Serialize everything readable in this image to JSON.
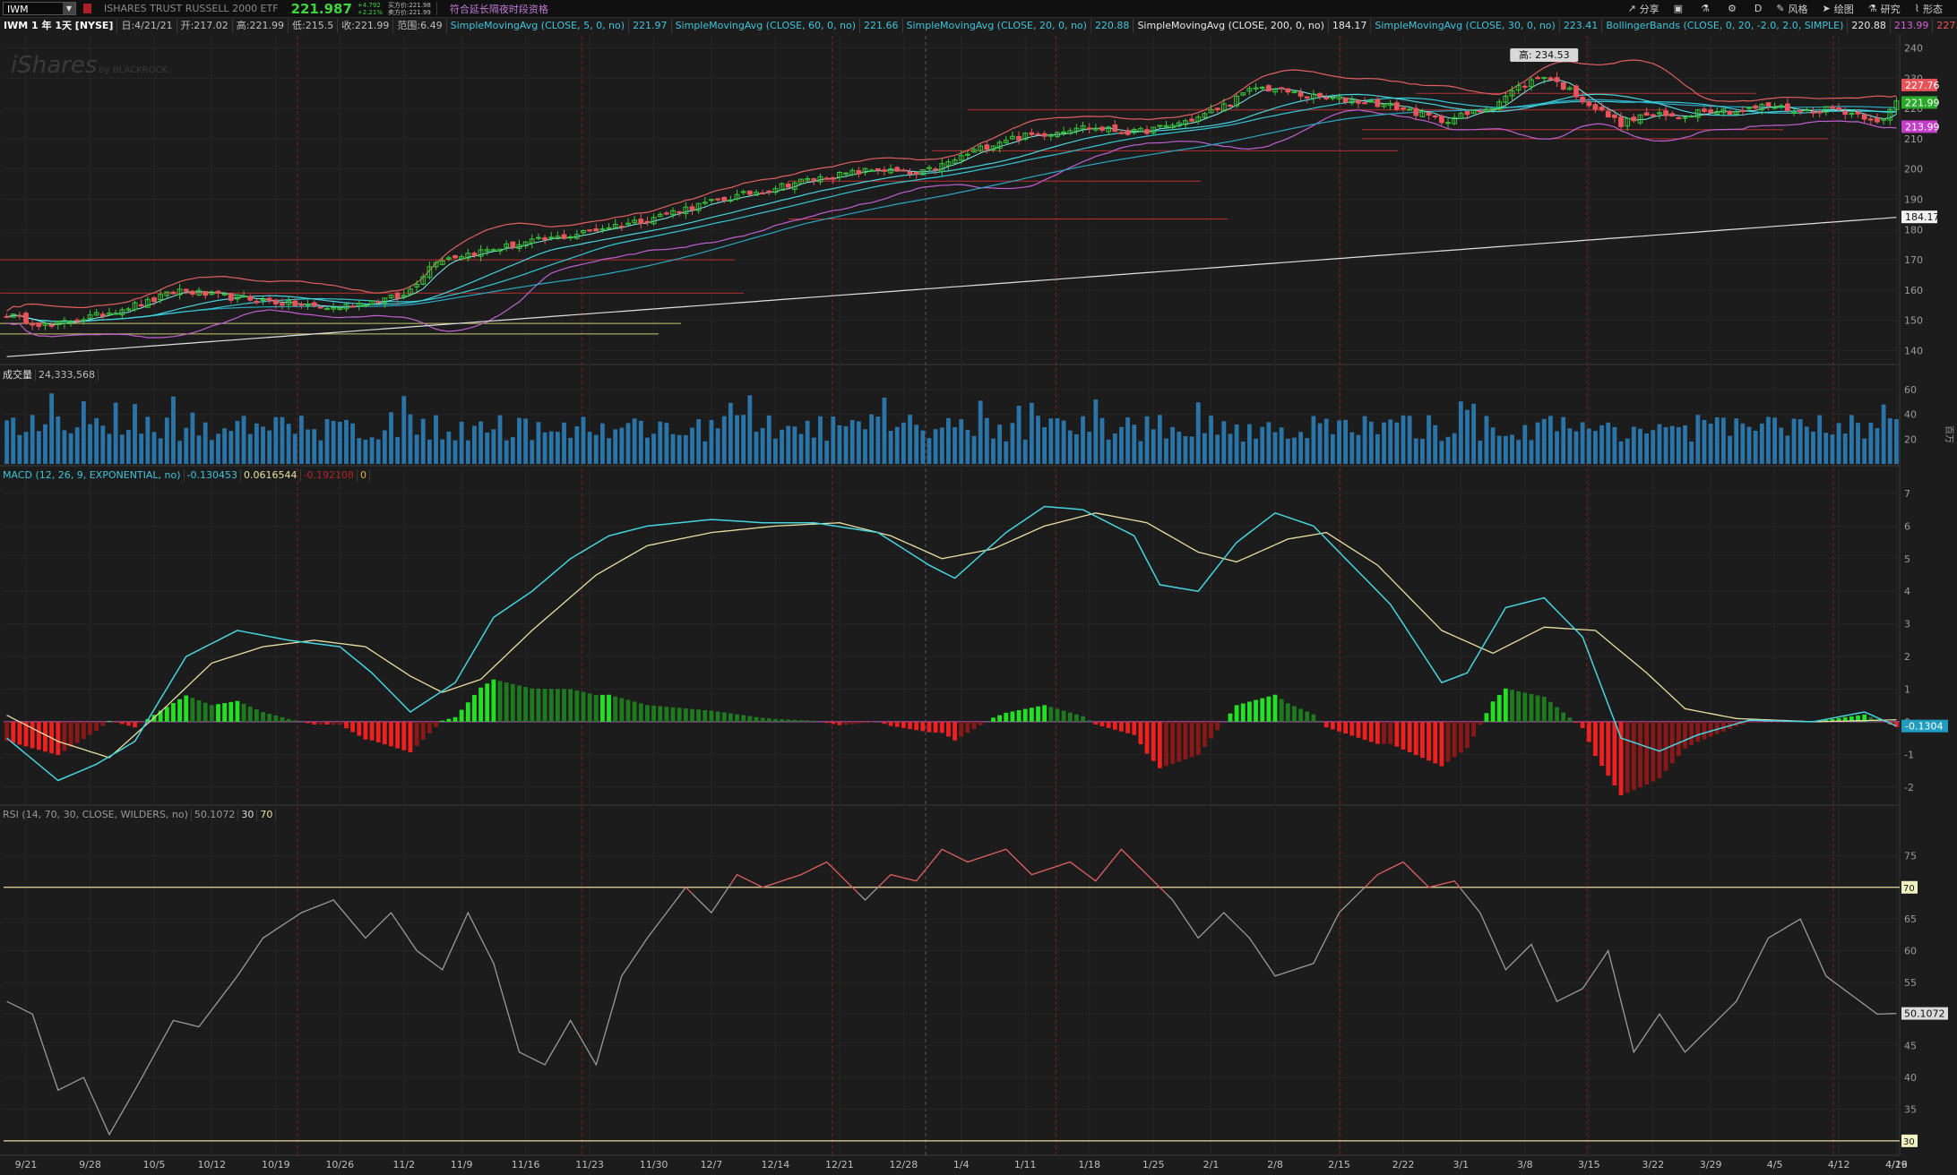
{
  "toolbar": {
    "symbol": "IWM",
    "security_name": "ISHARES TRUST RUSSELL 2000 ETF",
    "last_price": "221.987",
    "change_abs": "+4.792",
    "change_pct": "+2.21%",
    "bid": "买方价:221.98",
    "ask": "卖方价:221.99",
    "extended_hours": "符合延长隔夜时段资格",
    "share_label": "分享",
    "timeframe": "D",
    "style_label": "风格",
    "draw_label": "绘图",
    "study_label": "研究",
    "pattern_label": "形态"
  },
  "infobar": {
    "title": "IWM 1 年 1天 [NYSE]",
    "date": "日:4/21/21",
    "open": "开:217.02",
    "high": "高:221.99",
    "low": "低:215.5",
    "close": "收:221.99",
    "range": "范围:6.49",
    "studies": [
      {
        "label": "SimpleMovingAvg (CLOSE, 5, 0, no)",
        "value": "221.97",
        "color": "#3fc4d8"
      },
      {
        "label": "SimpleMovingAvg (CLOSE, 60, 0, no)",
        "value": "221.66",
        "color": "#3fc4d8"
      },
      {
        "label": "SimpleMovingAvg (CLOSE, 20, 0, no)",
        "value": "220.88",
        "color": "#3fc4d8"
      },
      {
        "label": "SimpleMovingAvg (CLOSE, 200, 0, no)",
        "value": "184.17",
        "color": "#e8e8e8"
      },
      {
        "label": "SimpleMovingAvg (CLOSE, 30, 0, no)",
        "value": "223.41",
        "color": "#3fc4d8"
      }
    ],
    "bollinger_label": "BollingerBands (CLOSE, 0, 20, -2.0, 2.0, SIMPLE)",
    "bollinger_values": [
      "220.88",
      "213.99",
      "227.76"
    ]
  },
  "watermark": "iShares",
  "watermark_sub": "by BLACKROCK",
  "high_marker": "高: 234.53",
  "volume_header": {
    "label": "成交量",
    "value": "24,333,568",
    "unit": "百万"
  },
  "macd_header": {
    "label": "MACD (12, 26, 9, EXPONENTIAL, no)",
    "value": "-0.130453",
    "avg": "0.0616544",
    "diff": "-0.192108",
    "zero": "0"
  },
  "rsi_header": {
    "label": "RSI (14, 70, 30, CLOSE, WILDERS, no)",
    "value": "50.1072",
    "oversold": "30",
    "overbought": "70"
  },
  "colors": {
    "up": "#38c838",
    "down": "#e8545a",
    "bollinger": "#e06060",
    "sma_fast": "#45d5e0",
    "sma_200": "#e0e0e0",
    "sma_mid": "#c060d0",
    "volume": "#2a74a8",
    "macd": "#45d5e0",
    "macd_avg": "#e8e0a0",
    "rsi": "#9a9a9a"
  },
  "chart_data": [
    {
      "type": "candlestick",
      "name": "IWM",
      "ylim": [
        136,
        244
      ],
      "y_ticks": [
        "140",
        "150",
        "160",
        "170",
        "180",
        "190",
        "200",
        "210",
        "220",
        "230",
        "240"
      ],
      "x_ticks": [
        "9/21",
        "9/28",
        "10/5",
        "10/12",
        "10/19",
        "10/26",
        "11/2",
        "11/9",
        "11/16",
        "11/23",
        "11/30",
        "12/7",
        "12/14",
        "12/21",
        "12/28",
        "1/4",
        "1/11",
        "1/18",
        "1/25",
        "2/1",
        "2/8",
        "2/15",
        "2/22",
        "3/1",
        "3/8",
        "3/15",
        "3/22",
        "3/29",
        "4/5",
        "4/12",
        "4/19",
        "4/26"
      ],
      "close_anchors": [
        [
          0,
          152
        ],
        [
          3,
          150
        ],
        [
          7,
          148
        ],
        [
          10,
          150
        ],
        [
          14,
          151.5
        ],
        [
          18,
          154
        ],
        [
          22,
          156
        ],
        [
          27,
          160
        ],
        [
          33,
          158
        ],
        [
          38,
          157
        ],
        [
          42,
          156
        ],
        [
          46,
          155
        ],
        [
          51,
          154
        ],
        [
          56,
          156
        ],
        [
          62,
          158
        ],
        [
          67,
          170
        ],
        [
          72,
          172
        ],
        [
          77,
          174
        ],
        [
          82,
          176
        ],
        [
          88,
          178
        ],
        [
          94,
          181
        ],
        [
          99,
          183
        ],
        [
          106,
          187
        ],
        [
          112,
          190
        ],
        [
          118,
          193
        ],
        [
          124,
          196
        ],
        [
          130,
          198
        ],
        [
          136,
          200
        ],
        [
          142,
          198
        ],
        [
          147,
          202
        ],
        [
          151,
          206
        ],
        [
          156,
          210
        ],
        [
          163,
          212
        ],
        [
          167,
          214
        ],
        [
          172,
          213
        ],
        [
          176,
          212
        ],
        [
          181,
          214
        ],
        [
          186,
          217
        ],
        [
          191,
          222
        ],
        [
          195,
          227
        ],
        [
          199,
          226
        ],
        [
          203,
          224
        ],
        [
          208,
          223
        ],
        [
          213,
          222
        ],
        [
          218,
          220
        ],
        [
          224,
          216
        ],
        [
          228,
          218
        ],
        [
          232,
          221
        ],
        [
          236,
          227
        ],
        [
          240,
          231
        ],
        [
          244,
          226
        ],
        [
          248,
          220
        ],
        [
          252,
          215
        ],
        [
          256,
          218
        ],
        [
          261,
          217
        ],
        [
          265,
          220
        ],
        [
          270,
          219
        ],
        [
          275,
          221
        ],
        [
          280,
          219
        ],
        [
          285,
          220
        ],
        [
          289,
          218
        ],
        [
          293,
          216
        ],
        [
          295,
          222
        ]
      ],
      "current_price_labels": [
        {
          "value": "227.76",
          "bg": "#e8545a"
        },
        {
          "value": "221.99",
          "bg": "#29a829"
        },
        {
          "value": "213.99",
          "bg": "#c33fc9"
        },
        {
          "value": "184.17",
          "bg": "#f2f2f2"
        }
      ]
    },
    {
      "type": "bar",
      "name": "Volume",
      "ylim": [
        0,
        65
      ],
      "y_ticks": [
        "20",
        "40",
        "60"
      ],
      "unit": "百万"
    },
    {
      "type": "line",
      "name": "MACD",
      "ylim": [
        -2.5,
        7.3
      ],
      "y_ticks": [
        "-2",
        "-1",
        "0",
        "1",
        "2",
        "3",
        "4",
        "5",
        "6",
        "7"
      ],
      "macd_anchors": [
        [
          0,
          -0.5
        ],
        [
          8,
          -1.8
        ],
        [
          14,
          -1.3
        ],
        [
          20,
          -0.6
        ],
        [
          28,
          2.0
        ],
        [
          36,
          2.8
        ],
        [
          44,
          2.5
        ],
        [
          52,
          2.3
        ],
        [
          57,
          1.5
        ],
        [
          63,
          0.3
        ],
        [
          70,
          1.2
        ],
        [
          76,
          3.2
        ],
        [
          82,
          4.0
        ],
        [
          88,
          5.0
        ],
        [
          94,
          5.7
        ],
        [
          100,
          6.0
        ],
        [
          110,
          6.2
        ],
        [
          118,
          6.1
        ],
        [
          126,
          6.1
        ],
        [
          136,
          5.8
        ],
        [
          144,
          4.8
        ],
        [
          148,
          4.4
        ],
        [
          156,
          5.8
        ],
        [
          162,
          6.6
        ],
        [
          168,
          6.5
        ],
        [
          176,
          5.7
        ],
        [
          180,
          4.2
        ],
        [
          186,
          4.0
        ],
        [
          192,
          5.5
        ],
        [
          198,
          6.4
        ],
        [
          204,
          6.0
        ],
        [
          210,
          4.8
        ],
        [
          216,
          3.6
        ],
        [
          224,
          1.2
        ],
        [
          228,
          1.5
        ],
        [
          234,
          3.5
        ],
        [
          240,
          3.8
        ],
        [
          246,
          2.6
        ],
        [
          252,
          -0.5
        ],
        [
          258,
          -0.9
        ],
        [
          264,
          -0.4
        ],
        [
          272,
          0.05
        ],
        [
          282,
          0.0
        ],
        [
          290,
          0.3
        ],
        [
          295,
          -0.13
        ]
      ],
      "avg_anchors": [
        [
          0,
          0.2
        ],
        [
          8,
          -0.6
        ],
        [
          16,
          -1.1
        ],
        [
          24,
          0.3
        ],
        [
          32,
          1.8
        ],
        [
          40,
          2.3
        ],
        [
          48,
          2.5
        ],
        [
          56,
          2.3
        ],
        [
          63,
          1.4
        ],
        [
          68,
          0.9
        ],
        [
          74,
          1.3
        ],
        [
          82,
          2.8
        ],
        [
          92,
          4.5
        ],
        [
          100,
          5.4
        ],
        [
          110,
          5.8
        ],
        [
          120,
          6.0
        ],
        [
          130,
          6.1
        ],
        [
          138,
          5.7
        ],
        [
          146,
          5.0
        ],
        [
          154,
          5.3
        ],
        [
          162,
          6.0
        ],
        [
          170,
          6.4
        ],
        [
          178,
          6.1
        ],
        [
          186,
          5.2
        ],
        [
          192,
          4.9
        ],
        [
          200,
          5.6
        ],
        [
          206,
          5.8
        ],
        [
          214,
          4.8
        ],
        [
          224,
          2.8
        ],
        [
          232,
          2.1
        ],
        [
          240,
          2.9
        ],
        [
          248,
          2.8
        ],
        [
          256,
          1.5
        ],
        [
          262,
          0.4
        ],
        [
          270,
          0.1
        ],
        [
          282,
          0.0
        ],
        [
          295,
          0.06
        ]
      ],
      "last_label": "-0.1304"
    },
    {
      "type": "line",
      "name": "RSI",
      "ylim": [
        28,
        80
      ],
      "y_ticks": [
        "30",
        "35",
        "40",
        "45",
        "50",
        "55",
        "60",
        "65",
        "70",
        "75"
      ],
      "rsi_anchors": [
        [
          0,
          52
        ],
        [
          4,
          50
        ],
        [
          8,
          38
        ],
        [
          12,
          40
        ],
        [
          16,
          31
        ],
        [
          20,
          38
        ],
        [
          26,
          49
        ],
        [
          30,
          48
        ],
        [
          36,
          56
        ],
        [
          40,
          62
        ],
        [
          46,
          66
        ],
        [
          51,
          68
        ],
        [
          56,
          62
        ],
        [
          60,
          66
        ],
        [
          64,
          60
        ],
        [
          68,
          57
        ],
        [
          72,
          66
        ],
        [
          76,
          58
        ],
        [
          80,
          44
        ],
        [
          84,
          42
        ],
        [
          88,
          49
        ],
        [
          92,
          42
        ],
        [
          96,
          56
        ],
        [
          100,
          62
        ],
        [
          106,
          70
        ],
        [
          110,
          66
        ],
        [
          114,
          72
        ],
        [
          118,
          70
        ],
        [
          124,
          72
        ],
        [
          128,
          74
        ],
        [
          134,
          68
        ],
        [
          138,
          72
        ],
        [
          142,
          71
        ],
        [
          146,
          76
        ],
        [
          150,
          74
        ],
        [
          156,
          76
        ],
        [
          160,
          72
        ],
        [
          166,
          74
        ],
        [
          170,
          71
        ],
        [
          174,
          76
        ],
        [
          178,
          72
        ],
        [
          182,
          68
        ],
        [
          186,
          62
        ],
        [
          190,
          66
        ],
        [
          194,
          62
        ],
        [
          198,
          56
        ],
        [
          204,
          58
        ],
        [
          208,
          66
        ],
        [
          214,
          72
        ],
        [
          218,
          74
        ],
        [
          222,
          70
        ],
        [
          226,
          71
        ],
        [
          230,
          66
        ],
        [
          234,
          57
        ],
        [
          238,
          61
        ],
        [
          242,
          52
        ],
        [
          246,
          54
        ],
        [
          250,
          60
        ],
        [
          254,
          44
        ],
        [
          258,
          50
        ],
        [
          262,
          44
        ],
        [
          266,
          48
        ],
        [
          270,
          52
        ],
        [
          275,
          62
        ],
        [
          280,
          65
        ],
        [
          284,
          56
        ],
        [
          288,
          53
        ],
        [
          292,
          50
        ],
        [
          295,
          50.1
        ]
      ],
      "last_label": "50.1072"
    }
  ]
}
